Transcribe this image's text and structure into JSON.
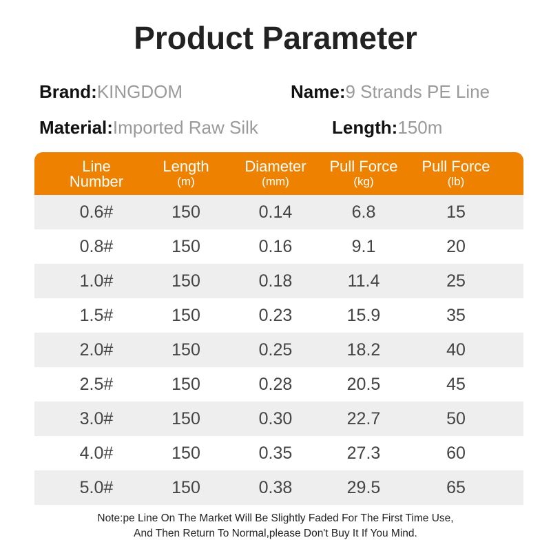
{
  "title": "Product Parameter",
  "info": {
    "brand_label": "Brand:",
    "brand_value": "KINGDOM",
    "name_label": "Name:",
    "name_value": "9 Strands PE Line",
    "material_label": "Material:",
    "material_value": "Imported Raw Silk",
    "length_label": "Length:",
    "length_value": "150m"
  },
  "table": {
    "header_color": "#EE8200",
    "columns": [
      {
        "name": "Line",
        "unit": "Number"
      },
      {
        "name": "Length",
        "unit": "(m)"
      },
      {
        "name": "Diameter",
        "unit": "(mm)"
      },
      {
        "name": "Pull Force",
        "unit": "(kg)"
      },
      {
        "name": "Pull Force",
        "unit": "(lb)"
      }
    ],
    "rows": [
      [
        "0.6#",
        "150",
        "0.14",
        "6.8",
        "15"
      ],
      [
        "0.8#",
        "150",
        "0.16",
        "9.1",
        "20"
      ],
      [
        "1.0#",
        "150",
        "0.18",
        "11.4",
        "25"
      ],
      [
        "1.5#",
        "150",
        "0.23",
        "15.9",
        "35"
      ],
      [
        "2.0#",
        "150",
        "0.25",
        "18.2",
        "40"
      ],
      [
        "2.5#",
        "150",
        "0.28",
        "20.5",
        "45"
      ],
      [
        "3.0#",
        "150",
        "0.30",
        "22.7",
        "50"
      ],
      [
        "4.0#",
        "150",
        "0.35",
        "27.3",
        "60"
      ],
      [
        "5.0#",
        "150",
        "0.38",
        "29.5",
        "65"
      ]
    ]
  },
  "note": {
    "line1": "Note:pe Line On The Market Will Be Slightly Faded For The First Time Use,",
    "line2": "And Then Return To Normal,please Don't Buy It If You Mind."
  }
}
